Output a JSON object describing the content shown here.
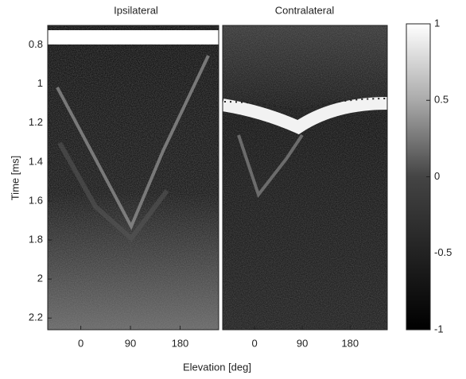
{
  "chart_data": [
    {
      "type": "heatmap",
      "title": "Ipsilateral",
      "xlabel": "Elevation [deg]",
      "ylabel": "Time [ms]",
      "xlim": [
        -60,
        250
      ],
      "xticks": [
        0,
        90,
        180
      ],
      "ylim": [
        0.7,
        2.26
      ],
      "yticks": [
        0.8,
        1,
        1.2,
        1.4,
        1.6,
        1.8,
        2,
        2.2
      ],
      "y_reversed": true
    },
    {
      "type": "heatmap",
      "title": "Contralateral",
      "xlim": [
        -60,
        250
      ],
      "xticks": [
        0,
        90,
        180
      ],
      "ylim": [
        0.7,
        2.26
      ],
      "y_reversed": true,
      "colorbar": {
        "zlim": [
          -1,
          1
        ],
        "zticks": [
          1,
          0.5,
          0,
          -0.5,
          -1
        ]
      }
    }
  ]
}
